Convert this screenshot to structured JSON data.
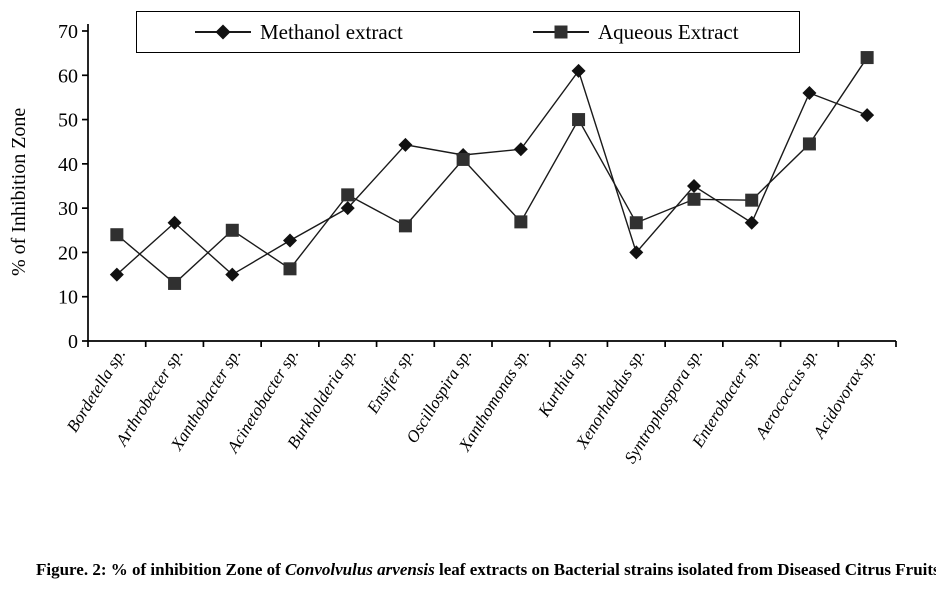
{
  "figure": {
    "caption_prefix": "Figure. 2: % of inhibition Zone of ",
    "caption_italic": "Convolvulus arvensis",
    "caption_suffix": " leaf extracts on Bacterial strains isolated from Diseased Citrus Fruits"
  },
  "chart_data": {
    "type": "line",
    "title": "",
    "xlabel": "",
    "ylabel": "% of Inhibition Zone",
    "ylim": [
      0,
      70
    ],
    "yticks": [
      0,
      10,
      20,
      30,
      40,
      50,
      60,
      70
    ],
    "grid": false,
    "legend_position": "top",
    "categories": [
      "Bordetella sp.",
      "Arthrobecter sp.",
      "Xanthobacter sp.",
      "Acinetobacter sp.",
      "Burkholderia sp.",
      "Ensifer sp.",
      "Oscillospira sp.",
      "Xanthomonas sp.",
      "Kurthia sp.",
      "Xenorhabdus sp.",
      "Syntrophospora sp.",
      "Enterobacter sp.",
      "Aerococcus sp.",
      "Acidovorax sp."
    ],
    "series": [
      {
        "name": "Methanol extract",
        "marker": "diamond",
        "marker_color": "#111111",
        "values": [
          15,
          26.7,
          15,
          22.7,
          30,
          44.3,
          42,
          43.3,
          61,
          20,
          35,
          26.7,
          56,
          51
        ]
      },
      {
        "name": "Aqueous Extract",
        "marker": "square",
        "marker_color": "#303030",
        "values": [
          24,
          13,
          25,
          16.3,
          33,
          26,
          41,
          26.9,
          50,
          26.7,
          32,
          31.8,
          44.5,
          64
        ]
      }
    ],
    "line_color": "#1a1a1a",
    "axis_color": "#000000"
  }
}
